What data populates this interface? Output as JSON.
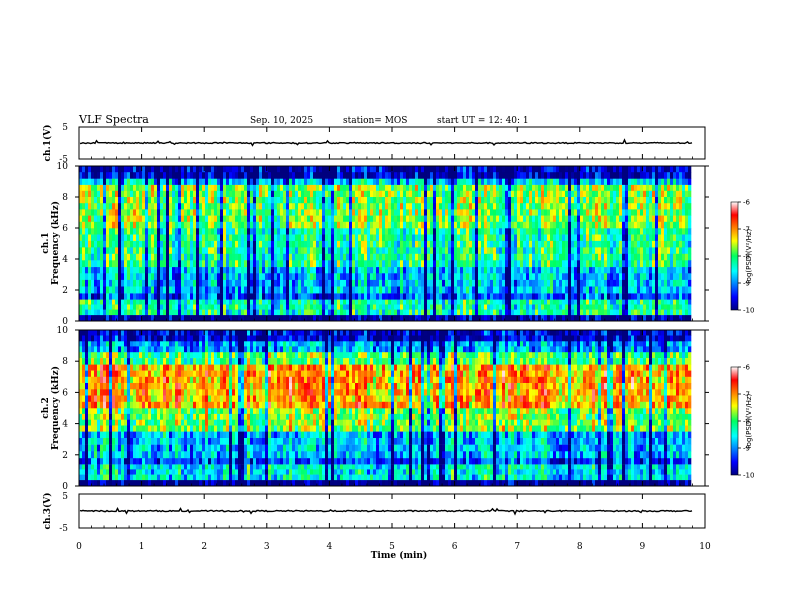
{
  "header": {
    "title": "VLF Spectra",
    "date": "Sep. 10, 2025",
    "station": "station= MOS",
    "start": "start  UT =   12: 40: 1"
  },
  "chart_data": [
    {
      "type": "line",
      "panel": "ch1-waveform",
      "ylabel": "ch.1(V)",
      "ylim": [
        -5,
        5
      ],
      "yticks": [
        "5",
        "-5"
      ],
      "series": [
        {
          "name": "ch.1",
          "approx_level": 0
        }
      ]
    },
    {
      "type": "heatmap",
      "panel": "ch1-spectrogram",
      "ylabel": "ch.1\nFrequency (kHz)",
      "ylim": [
        0,
        10
      ],
      "yticks": [
        "0",
        "2",
        "4",
        "6",
        "8",
        "10"
      ],
      "colorbar": {
        "label": "log(PSD)(V²/Hz)",
        "range": [
          -10,
          -6
        ],
        "ticks": [
          "-6",
          "-7",
          "-8",
          "-9",
          "-10"
        ]
      },
      "bands": [
        {
          "from_khz": 0.0,
          "to_khz": 0.4,
          "level": -10
        },
        {
          "from_khz": 0.4,
          "to_khz": 1.4,
          "level": -8.3
        },
        {
          "from_khz": 1.4,
          "to_khz": 1.8,
          "level": -9.3
        },
        {
          "from_khz": 1.8,
          "to_khz": 3.5,
          "level": -8.8
        },
        {
          "from_khz": 3.5,
          "to_khz": 6.0,
          "level": -8.2
        },
        {
          "from_khz": 6.0,
          "to_khz": 8.8,
          "level": -7.8
        },
        {
          "from_khz": 8.8,
          "to_khz": 9.2,
          "level": -8.7
        },
        {
          "from_khz": 9.2,
          "to_khz": 10.0,
          "level": -9.8
        }
      ]
    },
    {
      "type": "heatmap",
      "panel": "ch2-spectrogram",
      "ylabel": "ch.2\nFrequency (kHz)",
      "ylim": [
        0,
        10
      ],
      "yticks": [
        "0",
        "2",
        "4",
        "6",
        "8",
        "10"
      ],
      "colorbar": {
        "label": "log(PSD)(V²/Hz)",
        "range": [
          -10,
          -6
        ],
        "ticks": [
          "-6",
          "-7",
          "-8",
          "-9",
          "-10"
        ]
      },
      "bands": [
        {
          "from_khz": 0.0,
          "to_khz": 0.4,
          "level": -10
        },
        {
          "from_khz": 0.4,
          "to_khz": 1.4,
          "level": -8.5
        },
        {
          "from_khz": 1.4,
          "to_khz": 1.8,
          "level": -9.2
        },
        {
          "from_khz": 1.8,
          "to_khz": 3.5,
          "level": -8.7
        },
        {
          "from_khz": 3.5,
          "to_khz": 5.0,
          "level": -7.7
        },
        {
          "from_khz": 5.0,
          "to_khz": 7.8,
          "level": -7.0
        },
        {
          "from_khz": 7.8,
          "to_khz": 8.6,
          "level": -7.9
        },
        {
          "from_khz": 8.6,
          "to_khz": 9.3,
          "level": -8.8
        },
        {
          "from_khz": 9.3,
          "to_khz": 10.0,
          "level": -9.6
        }
      ]
    },
    {
      "type": "line",
      "panel": "ch3-waveform",
      "ylabel": "ch.3(V)",
      "ylim": [
        -5,
        5
      ],
      "yticks": [
        "5",
        "-5"
      ],
      "series": [
        {
          "name": "ch.3",
          "approx_level": 0
        }
      ]
    }
  ],
  "x_axis": {
    "label": "Time  (min)",
    "xlim": [
      0,
      10
    ],
    "data_end_min": 9.8,
    "ticks": [
      "0",
      "1",
      "2",
      "3",
      "4",
      "5",
      "6",
      "7",
      "8",
      "9",
      "10"
    ]
  }
}
